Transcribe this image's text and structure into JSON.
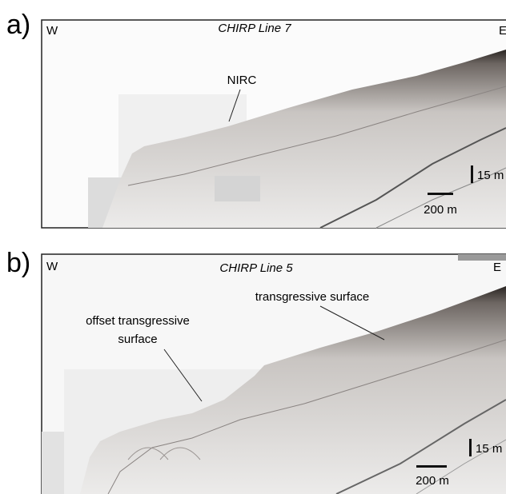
{
  "panels": [
    {
      "label": "a)",
      "west": "W",
      "title": "CHIRP Line 7",
      "east": "E",
      "annotations": [
        [
          "NIRC"
        ]
      ],
      "vertical_scale": "15 m",
      "horizontal_scale": "200 m"
    },
    {
      "label": "b)",
      "west": "W",
      "title": "CHIRP Line 5",
      "east": "E",
      "annotations": [
        [
          "transgressive surface"
        ],
        [
          "offset transgressive",
          "surface"
        ]
      ],
      "vertical_scale": "15 m",
      "horizontal_scale": "200 m"
    }
  ]
}
